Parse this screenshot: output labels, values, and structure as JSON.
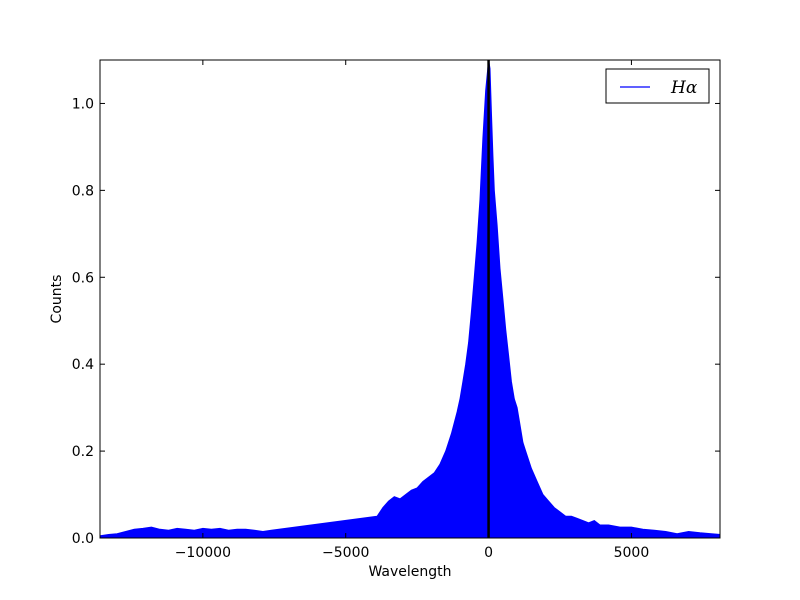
{
  "chart_data": {
    "type": "area",
    "xlabel": "Wavelength",
    "ylabel": "Counts",
    "xlim": [
      -13600,
      8100
    ],
    "ylim": [
      0,
      1.1
    ],
    "x_ticks": [
      -10000,
      -5000,
      0,
      5000
    ],
    "x_tick_labels": [
      "−10000",
      "−5000",
      "0",
      "5000"
    ],
    "y_ticks": [
      0.0,
      0.2,
      0.4,
      0.6,
      0.8,
      1.0
    ],
    "y_tick_labels": [
      "0.0",
      "0.2",
      "0.4",
      "0.6",
      "0.8",
      "1.0"
    ],
    "grid": false,
    "legend_position": "top-right",
    "series": [
      {
        "name": "Hα",
        "color": "#0000ff",
        "x": [
          -13600,
          -13300,
          -13000,
          -12700,
          -12400,
          -12100,
          -11800,
          -11500,
          -11200,
          -10900,
          -10600,
          -10300,
          -10000,
          -9700,
          -9400,
          -9100,
          -8800,
          -8500,
          -8200,
          -7900,
          -7600,
          -3900,
          -3700,
          -3500,
          -3300,
          -3100,
          -2900,
          -2700,
          -2500,
          -2300,
          -2100,
          -1900,
          -1700,
          -1500,
          -1300,
          -1100,
          -1000,
          -900,
          -800,
          -700,
          -600,
          -500,
          -400,
          -300,
          -200,
          -100,
          0,
          50,
          100,
          150,
          200,
          300,
          400,
          500,
          600,
          700,
          800,
          900,
          1000,
          1100,
          1200,
          1300,
          1500,
          1700,
          1900,
          2100,
          2300,
          2500,
          2700,
          2900,
          3100,
          3300,
          3500,
          3700,
          3900,
          4200,
          4600,
          5000,
          5400,
          5800,
          6200,
          6600,
          7000,
          7400,
          7800,
          8100
        ],
        "y": [
          0.005,
          0.008,
          0.01,
          0.015,
          0.02,
          0.022,
          0.025,
          0.02,
          0.018,
          0.022,
          0.02,
          0.018,
          0.022,
          0.02,
          0.022,
          0.018,
          0.02,
          0.02,
          0.018,
          0.015,
          0.018,
          0.05,
          0.07,
          0.085,
          0.095,
          0.09,
          0.1,
          0.11,
          0.115,
          0.13,
          0.14,
          0.15,
          0.17,
          0.2,
          0.24,
          0.29,
          0.32,
          0.36,
          0.4,
          0.45,
          0.52,
          0.6,
          0.68,
          0.78,
          0.92,
          1.03,
          1.1,
          1.08,
          0.98,
          0.88,
          0.8,
          0.72,
          0.62,
          0.55,
          0.48,
          0.42,
          0.36,
          0.32,
          0.3,
          0.26,
          0.22,
          0.2,
          0.16,
          0.13,
          0.1,
          0.085,
          0.07,
          0.06,
          0.05,
          0.05,
          0.045,
          0.04,
          0.035,
          0.04,
          0.03,
          0.03,
          0.025,
          0.025,
          0.02,
          0.018,
          0.015,
          0.01,
          0.015,
          0.012,
          0.01,
          0.008
        ]
      }
    ],
    "vline_x": 0
  }
}
